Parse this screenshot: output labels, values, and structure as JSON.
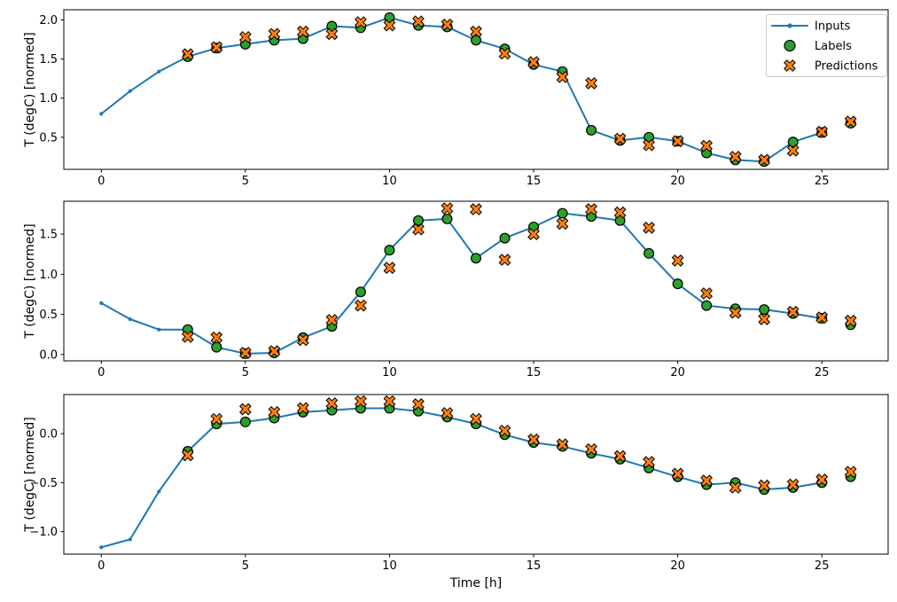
{
  "figure": {
    "background": "#ffffff",
    "xlabel": "Time [h]",
    "ylabel": "T (degC) [normed]",
    "legend": {
      "position": "upper right",
      "items": [
        {
          "label": "Inputs",
          "marker": "line-dot",
          "color": "#1f77b4"
        },
        {
          "label": "Labels",
          "marker": "circle",
          "color": "#2ca02c",
          "edgecolor": "#000000"
        },
        {
          "label": "Predictions",
          "marker": "x",
          "color": "#ff7f0e",
          "edgecolor": "#000000"
        }
      ]
    }
  },
  "chart_data": [
    {
      "type": "line",
      "subplot": 1,
      "ylabel": "T (degC) [normed]",
      "grid": false,
      "xlim": [
        -1.3,
        27.3
      ],
      "ylim": [
        0.09,
        2.13
      ],
      "xtick_values": [
        0,
        5,
        10,
        15,
        20,
        25
      ],
      "xtick_labels": [
        "0",
        "5",
        "10",
        "15",
        "20",
        "25"
      ],
      "ytick_values": [
        0.5,
        1.0,
        1.5,
        2.0
      ],
      "ytick_labels": [
        "0.5",
        "1.0",
        "1.5",
        "2.0"
      ],
      "series": [
        {
          "name": "Inputs",
          "kind": "line-dot",
          "color": "#1f77b4",
          "x": [
            0,
            1,
            2,
            3,
            4,
            5,
            6,
            7,
            8,
            9,
            10,
            11,
            12,
            13,
            14,
            15,
            16,
            17,
            18,
            19,
            20,
            21,
            22,
            23,
            24,
            25
          ],
          "y": [
            0.8,
            1.09,
            1.34,
            1.53,
            1.64,
            1.69,
            1.74,
            1.76,
            1.92,
            1.9,
            2.03,
            1.93,
            1.91,
            1.74,
            1.63,
            1.43,
            1.34,
            0.59,
            0.46,
            0.5,
            0.45,
            0.3,
            0.21,
            0.19,
            0.44,
            0.56
          ]
        },
        {
          "name": "Labels",
          "kind": "scatter-circle",
          "color": "#2ca02c",
          "edgecolor": "#000000",
          "x": [
            3,
            4,
            5,
            6,
            7,
            8,
            9,
            10,
            11,
            12,
            13,
            14,
            15,
            16,
            17,
            18,
            19,
            20,
            21,
            22,
            23,
            24,
            25,
            26
          ],
          "y": [
            1.53,
            1.64,
            1.69,
            1.74,
            1.76,
            1.92,
            1.9,
            2.03,
            1.93,
            1.91,
            1.74,
            1.63,
            1.43,
            1.34,
            0.59,
            0.46,
            0.5,
            0.45,
            0.3,
            0.21,
            0.19,
            0.44,
            0.56,
            0.68
          ]
        },
        {
          "name": "Predictions",
          "kind": "scatter-x",
          "color": "#ff7f0e",
          "edgecolor": "#000000",
          "x": [
            3,
            4,
            5,
            6,
            7,
            8,
            9,
            10,
            11,
            12,
            13,
            14,
            15,
            16,
            17,
            18,
            19,
            20,
            21,
            22,
            23,
            24,
            25,
            26
          ],
          "y": [
            1.56,
            1.65,
            1.78,
            1.82,
            1.85,
            1.82,
            1.97,
            1.93,
            1.98,
            1.94,
            1.85,
            1.57,
            1.46,
            1.27,
            1.19,
            0.48,
            0.4,
            0.45,
            0.39,
            0.25,
            0.21,
            0.33,
            0.57,
            0.7
          ]
        }
      ]
    },
    {
      "type": "line",
      "subplot": 2,
      "ylabel": "T (degC) [normed]",
      "grid": false,
      "xlim": [
        -1.3,
        27.3
      ],
      "ylim": [
        -0.08,
        1.91
      ],
      "xtick_values": [
        0,
        5,
        10,
        15,
        20,
        25
      ],
      "xtick_labels": [
        "0",
        "5",
        "10",
        "15",
        "20",
        "25"
      ],
      "ytick_values": [
        0.0,
        0.5,
        1.0,
        1.5
      ],
      "ytick_labels": [
        "0.0",
        "0.5",
        "1.0",
        "1.5"
      ],
      "series": [
        {
          "name": "Inputs",
          "kind": "line-dot",
          "color": "#1f77b4",
          "x": [
            0,
            1,
            2,
            3,
            4,
            5,
            6,
            7,
            8,
            9,
            10,
            11,
            12,
            13,
            14,
            15,
            16,
            17,
            18,
            19,
            20,
            21,
            22,
            23,
            24,
            25
          ],
          "y": [
            0.64,
            0.44,
            0.31,
            0.31,
            0.09,
            0.01,
            0.02,
            0.21,
            0.35,
            0.78,
            1.3,
            1.67,
            1.69,
            1.2,
            1.45,
            1.59,
            1.76,
            1.72,
            1.67,
            1.26,
            0.88,
            0.61,
            0.57,
            0.56,
            0.51,
            0.45
          ]
        },
        {
          "name": "Labels",
          "kind": "scatter-circle",
          "color": "#2ca02c",
          "edgecolor": "#000000",
          "x": [
            3,
            4,
            5,
            6,
            7,
            8,
            9,
            10,
            11,
            12,
            13,
            14,
            15,
            16,
            17,
            18,
            19,
            20,
            21,
            22,
            23,
            24,
            25,
            26
          ],
          "y": [
            0.31,
            0.09,
            0.01,
            0.02,
            0.21,
            0.35,
            0.78,
            1.3,
            1.67,
            1.69,
            1.2,
            1.45,
            1.59,
            1.76,
            1.72,
            1.67,
            1.26,
            0.88,
            0.61,
            0.57,
            0.56,
            0.51,
            0.45,
            0.37
          ]
        },
        {
          "name": "Predictions",
          "kind": "scatter-x",
          "color": "#ff7f0e",
          "edgecolor": "#000000",
          "x": [
            3,
            4,
            5,
            6,
            7,
            8,
            9,
            10,
            11,
            12,
            13,
            14,
            15,
            16,
            17,
            18,
            19,
            20,
            21,
            22,
            23,
            24,
            25,
            26
          ],
          "y": [
            0.22,
            0.21,
            0.02,
            0.04,
            0.18,
            0.43,
            0.61,
            1.08,
            1.56,
            1.82,
            1.81,
            1.18,
            1.5,
            1.63,
            1.81,
            1.77,
            1.58,
            1.17,
            0.76,
            0.52,
            0.44,
            0.53,
            0.46,
            0.42
          ]
        }
      ]
    },
    {
      "type": "line",
      "subplot": 3,
      "ylabel": "T (degC) [normed]",
      "xlabel": "Time [h]",
      "grid": false,
      "xlim": [
        -1.3,
        27.3
      ],
      "ylim": [
        -1.23,
        0.4
      ],
      "xtick_values": [
        0,
        5,
        10,
        15,
        20,
        25
      ],
      "xtick_labels": [
        "0",
        "5",
        "10",
        "15",
        "20",
        "25"
      ],
      "ytick_values": [
        0.0,
        -0.5,
        -1.0
      ],
      "ytick_labels": [
        "0.0",
        "−0.5",
        "−1.0"
      ],
      "series": [
        {
          "name": "Inputs",
          "kind": "line-dot",
          "color": "#1f77b4",
          "x": [
            0,
            1,
            2,
            3,
            4,
            5,
            6,
            7,
            8,
            9,
            10,
            11,
            12,
            13,
            14,
            15,
            16,
            17,
            18,
            19,
            20,
            21,
            22,
            23,
            24,
            25
          ],
          "y": [
            -1.16,
            -1.08,
            -0.59,
            -0.18,
            0.1,
            0.12,
            0.16,
            0.22,
            0.24,
            0.26,
            0.26,
            0.23,
            0.17,
            0.1,
            -0.01,
            -0.09,
            -0.13,
            -0.2,
            -0.26,
            -0.35,
            -0.44,
            -0.52,
            -0.5,
            -0.57,
            -0.55,
            -0.5
          ]
        },
        {
          "name": "Labels",
          "kind": "scatter-circle",
          "color": "#2ca02c",
          "edgecolor": "#000000",
          "x": [
            3,
            4,
            5,
            6,
            7,
            8,
            9,
            10,
            11,
            12,
            13,
            14,
            15,
            16,
            17,
            18,
            19,
            20,
            21,
            22,
            23,
            24,
            25,
            26
          ],
          "y": [
            -0.18,
            0.1,
            0.12,
            0.16,
            0.22,
            0.24,
            0.26,
            0.26,
            0.23,
            0.17,
            0.1,
            -0.01,
            -0.09,
            -0.13,
            -0.2,
            -0.26,
            -0.35,
            -0.44,
            -0.52,
            -0.5,
            -0.57,
            -0.55,
            -0.5,
            -0.44
          ]
        },
        {
          "name": "Predictions",
          "kind": "scatter-x",
          "color": "#ff7f0e",
          "edgecolor": "#000000",
          "x": [
            3,
            4,
            5,
            6,
            7,
            8,
            9,
            10,
            11,
            12,
            13,
            14,
            15,
            16,
            17,
            18,
            19,
            20,
            21,
            22,
            23,
            24,
            25,
            26
          ],
          "y": [
            -0.22,
            0.15,
            0.25,
            0.22,
            0.26,
            0.31,
            0.33,
            0.33,
            0.3,
            0.21,
            0.15,
            0.03,
            -0.06,
            -0.11,
            -0.16,
            -0.23,
            -0.29,
            -0.41,
            -0.48,
            -0.55,
            -0.53,
            -0.52,
            -0.47,
            -0.39
          ]
        }
      ]
    }
  ]
}
